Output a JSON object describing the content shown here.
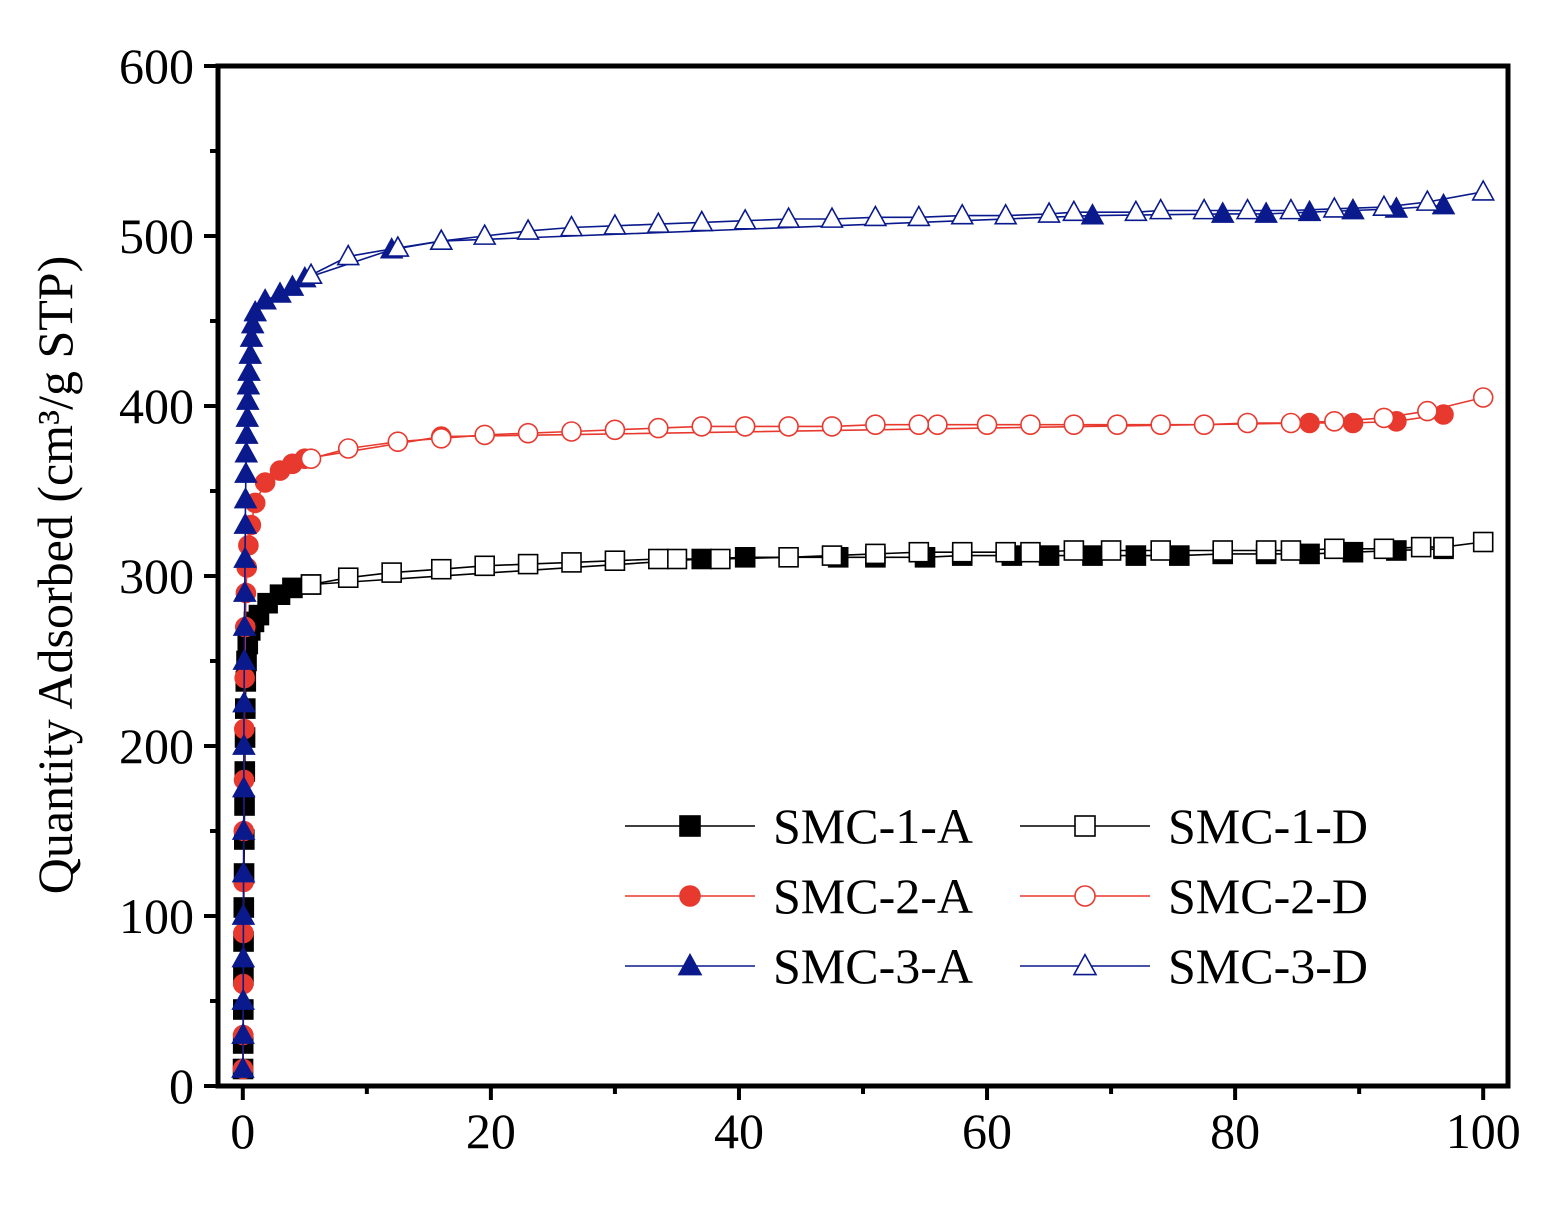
{
  "chart_data": {
    "type": "line",
    "title": "",
    "xlabel": "",
    "ylabel": "Quantity Adsorbed (cm³/g STP)",
    "xlim": [
      -2,
      102
    ],
    "ylim": [
      0,
      600
    ],
    "x_ticks": [
      0,
      20,
      40,
      60,
      80,
      100
    ],
    "y_ticks": [
      0,
      100,
      200,
      300,
      400,
      500,
      600
    ],
    "legend_position": "bottom-right",
    "grid": false,
    "series": [
      {
        "name": "SMC-1-A",
        "color": "#000000",
        "marker": "square",
        "filled": true,
        "x": [
          0.02,
          0.03,
          0.04,
          0.05,
          0.06,
          0.08,
          0.1,
          0.12,
          0.14,
          0.16,
          0.18,
          0.2,
          0.24,
          0.3,
          0.4,
          0.6,
          0.9,
          1.3,
          2,
          3,
          4,
          5.5,
          37,
          40.5,
          48,
          51,
          55,
          58,
          62,
          65,
          68.5,
          72,
          75.5,
          79,
          82.5,
          86,
          89.5,
          93,
          96.8
        ],
        "y": [
          10,
          25,
          45,
          65,
          85,
          105,
          125,
          145,
          165,
          185,
          205,
          222,
          238,
          250,
          260,
          268,
          273,
          277,
          284,
          289,
          293,
          295,
          310,
          311,
          311,
          311,
          311,
          312,
          312,
          312,
          312,
          312,
          312,
          313,
          313,
          313,
          314,
          315,
          316
        ]
      },
      {
        "name": "SMC-1-D",
        "color": "#000000",
        "marker": "square",
        "filled": false,
        "x": [
          100,
          96.8,
          95,
          92,
          88,
          84.5,
          82.5,
          79,
          74,
          70,
          67,
          63.5,
          61.5,
          58,
          54.5,
          51,
          47.5,
          44,
          38.5,
          35,
          33.5,
          30,
          26.5,
          23,
          19.5,
          16,
          12,
          8.5,
          5.5
        ],
        "y": [
          320,
          317,
          317,
          316,
          316,
          315,
          315,
          315,
          315,
          315,
          315,
          314,
          314,
          314,
          314,
          313,
          312,
          311,
          310,
          310,
          310,
          309,
          308,
          307,
          306,
          304,
          302,
          299,
          295
        ]
      },
      {
        "name": "SMC-2-A",
        "color": "#e8392e",
        "marker": "circle",
        "filled": true,
        "x": [
          0.02,
          0.03,
          0.04,
          0.05,
          0.06,
          0.08,
          0.1,
          0.12,
          0.15,
          0.2,
          0.25,
          0.32,
          0.45,
          0.65,
          1,
          1.8,
          3,
          4,
          5,
          16,
          86,
          89.5,
          93,
          96.8
        ],
        "y": [
          10,
          30,
          60,
          90,
          120,
          150,
          180,
          210,
          240,
          270,
          290,
          305,
          318,
          330,
          343,
          355,
          362,
          366,
          369,
          382,
          390,
          390,
          391,
          395
        ]
      },
      {
        "name": "SMC-2-D",
        "color": "#e8392e",
        "marker": "circle",
        "filled": false,
        "x": [
          100,
          95.5,
          92,
          88,
          84.5,
          81,
          77.5,
          74,
          70.5,
          67,
          63.5,
          60,
          56,
          54.5,
          51,
          47.5,
          44,
          40.5,
          37,
          33.5,
          30,
          26.5,
          23,
          19.5,
          16,
          12.5,
          8.5,
          5.5
        ],
        "y": [
          405,
          397,
          393,
          391,
          390,
          390,
          389,
          389,
          389,
          389,
          389,
          389,
          389,
          389,
          389,
          388,
          388,
          388,
          388,
          387,
          386,
          385,
          384,
          383,
          381,
          379,
          375,
          369
        ]
      },
      {
        "name": "SMC-3-A",
        "color": "#0a1a8c",
        "marker": "triangle",
        "filled": true,
        "x": [
          0.01,
          0.02,
          0.03,
          0.04,
          0.05,
          0.06,
          0.07,
          0.08,
          0.09,
          0.1,
          0.12,
          0.14,
          0.16,
          0.18,
          0.2,
          0.22,
          0.25,
          0.28,
          0.32,
          0.36,
          0.4,
          0.45,
          0.5,
          0.6,
          0.7,
          0.8,
          1,
          1.8,
          3,
          4,
          5,
          12,
          16,
          68.5,
          79,
          82.5,
          86,
          89.5,
          93,
          96.8
        ],
        "y": [
          10,
          30,
          50,
          75,
          100,
          125,
          150,
          175,
          200,
          225,
          250,
          270,
          290,
          310,
          330,
          345,
          360,
          372,
          383,
          393,
          403,
          412,
          420,
          430,
          440,
          448,
          455,
          462,
          466,
          470,
          475,
          492,
          497,
          512,
          513,
          513,
          514,
          515,
          516,
          518
        ]
      },
      {
        "name": "SMC-3-D",
        "color": "#0a1a8c",
        "marker": "triangle",
        "filled": false,
        "x": [
          100,
          95.5,
          92,
          88,
          84.5,
          81,
          77.5,
          74,
          72,
          67,
          65,
          61.5,
          58,
          54.5,
          51,
          47.5,
          44,
          40.5,
          37,
          33.5,
          30,
          26.5,
          23,
          19.5,
          16,
          12.5,
          8.5,
          5.5
        ],
        "y": [
          526,
          520,
          517,
          516,
          515,
          515,
          515,
          515,
          514,
          514,
          513,
          512,
          512,
          511,
          511,
          510,
          510,
          509,
          508,
          507,
          506,
          505,
          503,
          500,
          497,
          493,
          488,
          477
        ]
      }
    ]
  }
}
